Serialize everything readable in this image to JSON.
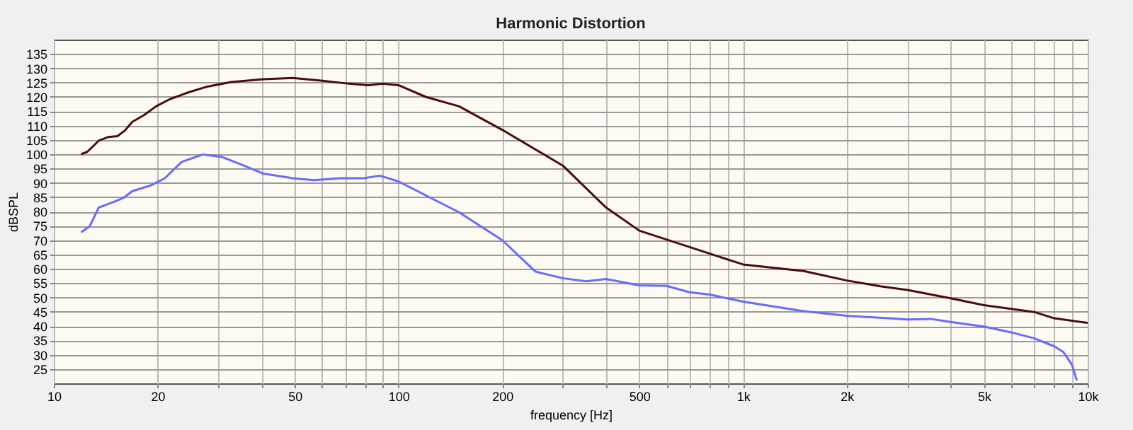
{
  "chart_data": {
    "type": "line",
    "title": "Harmonic Distortion",
    "xlabel": "frequency [Hz]",
    "ylabel": "dBSPL",
    "log": "x",
    "grid": true,
    "legend": false,
    "marker": "none",
    "line_style": "solid",
    "xlim": [
      10,
      10000
    ],
    "ylim": [
      20,
      140
    ],
    "xticks": [
      10,
      20,
      {
        "value": 30,
        "label": null
      },
      {
        "value": 40,
        "label": null
      },
      50,
      {
        "value": 60,
        "label": null
      },
      {
        "value": 70,
        "label": null
      },
      {
        "value": 80,
        "label": null
      },
      {
        "value": 90,
        "label": null
      },
      100,
      200,
      {
        "value": 300,
        "label": null
      },
      {
        "value": 400,
        "label": null
      },
      500,
      {
        "value": 600,
        "label": null
      },
      {
        "value": 700,
        "label": null
      },
      {
        "value": 800,
        "label": null
      },
      {
        "value": 900,
        "label": null
      },
      {
        "value": 1000,
        "label": "1k"
      },
      {
        "value": 2000,
        "label": "2k"
      },
      {
        "value": 3000,
        "label": null
      },
      {
        "value": 4000,
        "label": null
      },
      {
        "value": 5000,
        "label": "5k"
      },
      {
        "value": 6000,
        "label": null
      },
      {
        "value": 7000,
        "label": null
      },
      {
        "value": 8000,
        "label": null
      },
      {
        "value": 9000,
        "label": null
      },
      {
        "value": 10000,
        "label": "10k"
      }
    ],
    "yticks": [
      25,
      30,
      35,
      40,
      45,
      50,
      55,
      60,
      65,
      70,
      75,
      80,
      85,
      90,
      95,
      100,
      105,
      110,
      115,
      120,
      125,
      130,
      135
    ],
    "series": [
      {
        "color": "#4a0c0c",
        "x": [
          12,
          12.5,
          13.5,
          14.4,
          15.3,
          16.1,
          16.9,
          18.3,
          19.8,
          21.7,
          24.6,
          27.9,
          32.7,
          40.6,
          49.4,
          59.6,
          71.9,
          81.7,
          89.9,
          100,
          120,
          150,
          200,
          300,
          400,
          500,
          1000,
          1500,
          2000,
          2500,
          3000,
          4000,
          5000,
          6000,
          7000,
          8000,
          10000
        ],
        "values": [
          100,
          100.8,
          104.7,
          106,
          106.3,
          108.3,
          111.3,
          113.7,
          116.7,
          119.2,
          121.6,
          123.6,
          125.2,
          126.2,
          126.6,
          125.7,
          124.6,
          124.1,
          124.6,
          124.1,
          120,
          116.7,
          108.5,
          96,
          81.4,
          73.3,
          61.5,
          59.2,
          55.9,
          53.9,
          52.6,
          49.7,
          47.3,
          46,
          44.9,
          42.7,
          41.1
        ]
      },
      {
        "color": "#6a6aff",
        "x": [
          12,
          12.7,
          13.5,
          14.9,
          15.9,
          16.9,
          19.1,
          21,
          23.5,
          27.1,
          30.8,
          34.8,
          40.6,
          49.4,
          56.9,
          67.5,
          79.2,
          88.4,
          100,
          150,
          200,
          250,
          300,
          350,
          400,
          500,
          600,
          700,
          800,
          1000,
          1500,
          2000,
          3000,
          3500,
          4000,
          5000,
          6000,
          7000,
          8000,
          8500,
          9000,
          9300
        ],
        "values": [
          72.7,
          74.8,
          81.4,
          83.3,
          84.7,
          87.1,
          89.1,
          91.6,
          97.3,
          99.9,
          99,
          96.5,
          93.2,
          91.6,
          90.9,
          91.6,
          91.6,
          92.5,
          90.5,
          79.7,
          70,
          59,
          56.7,
          55.6,
          56.4,
          54.2,
          54,
          51.8,
          51,
          48.5,
          45.2,
          43.6,
          42.3,
          42.5,
          41.4,
          39.8,
          37.8,
          35.7,
          32.9,
          30.9,
          26.5,
          21
        ]
      }
    ]
  }
}
